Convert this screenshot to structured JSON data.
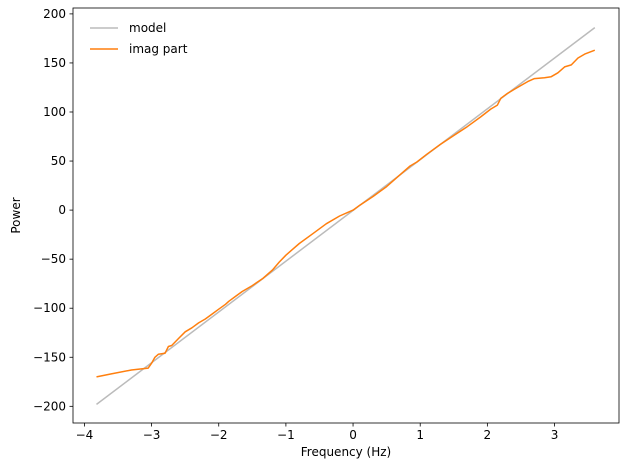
{
  "chart_data": {
    "type": "line",
    "title": "",
    "xlabel": "Frequency (Hz)",
    "ylabel": "Power",
    "xlim": [
      -4.17,
      3.96
    ],
    "ylim": [
      -217,
      206
    ],
    "xticks": [
      -4,
      -3,
      -2,
      -1,
      0,
      1,
      2,
      3
    ],
    "yticks": [
      -200,
      -150,
      -100,
      -50,
      0,
      50,
      100,
      150,
      200
    ],
    "xtick_labels": [
      "−4",
      "−3",
      "−2",
      "−1",
      "0",
      "1",
      "2",
      "3"
    ],
    "ytick_labels": [
      "−200",
      "−150",
      "−100",
      "−50",
      "0",
      "50",
      "100",
      "150",
      "200"
    ],
    "grid": false,
    "legend_position": "top-left",
    "series": [
      {
        "name": "model",
        "color": "#bbbbbb",
        "x": [
          -3.82,
          3.6
        ],
        "y": [
          -198,
          186
        ]
      },
      {
        "name": "imag part",
        "color": "#ff7f0e",
        "x": [
          -3.82,
          -3.6,
          -3.3,
          -3.05,
          -3.0,
          -2.95,
          -2.9,
          -2.8,
          -2.75,
          -2.7,
          -2.6,
          -2.5,
          -2.4,
          -2.3,
          -2.2,
          -2.1,
          -2.0,
          -1.9,
          -1.85,
          -1.75,
          -1.65,
          -1.5,
          -1.35,
          -1.2,
          -1.1,
          -1.0,
          -0.9,
          -0.8,
          -0.6,
          -0.4,
          -0.2,
          0.0,
          0.1,
          0.3,
          0.5,
          0.6,
          0.75,
          0.85,
          0.95,
          1.1,
          1.3,
          1.5,
          1.7,
          1.9,
          2.05,
          2.15,
          2.2,
          2.3,
          2.4,
          2.5,
          2.6,
          2.7,
          2.85,
          2.95,
          3.05,
          3.15,
          3.25,
          3.35,
          3.45,
          3.6
        ],
        "y": [
          -170,
          -167,
          -163,
          -161,
          -156,
          -150,
          -147,
          -146,
          -139,
          -138,
          -131,
          -124,
          -120,
          -115,
          -111,
          -106,
          -101,
          -96,
          -93,
          -88,
          -83,
          -77,
          -70,
          -61,
          -53,
          -46,
          -40,
          -34,
          -24,
          -14,
          -6,
          0,
          5,
          14,
          24,
          30,
          39,
          45,
          49,
          57,
          67,
          76,
          85,
          95,
          103,
          107,
          114,
          119,
          123,
          127,
          131,
          134,
          135,
          136,
          140,
          146,
          148,
          155,
          159,
          163
        ]
      }
    ]
  }
}
